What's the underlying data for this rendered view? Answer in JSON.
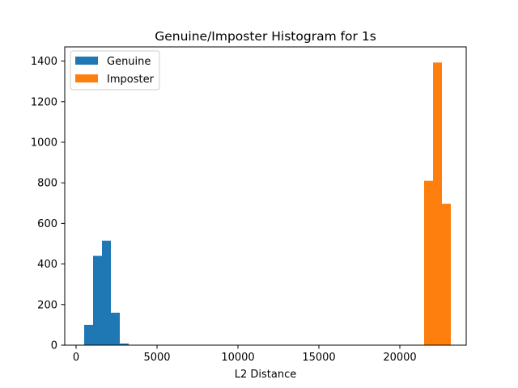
{
  "chart_data": {
    "type": "bar",
    "title": "Genuine/Imposter Histogram for 1s",
    "xlabel": "L2 Distance",
    "ylabel": "",
    "xlim": [
      -700,
      24100
    ],
    "ylim": [
      0,
      1470
    ],
    "xticks": [
      0,
      5000,
      10000,
      15000,
      20000
    ],
    "xtick_labels": [
      "0",
      "5000",
      "10000",
      "15000",
      "20000"
    ],
    "yticks": [
      0,
      200,
      400,
      600,
      800,
      1000,
      1200,
      1400
    ],
    "ytick_labels": [
      "0",
      "200",
      "400",
      "600",
      "800",
      "1000",
      "1200",
      "1400"
    ],
    "grid": false,
    "legend": {
      "position": "top-left"
    },
    "series": [
      {
        "name": "Genuine",
        "color": "#1f77b4",
        "bin_edges": [
          500,
          1050,
          1600,
          2150,
          2700,
          3250
        ],
        "counts": [
          100,
          440,
          515,
          160,
          8
        ]
      },
      {
        "name": "Imposter",
        "color": "#ff7f0e",
        "bin_edges": [
          21500,
          22050,
          22600,
          23150
        ],
        "counts": [
          810,
          1393,
          697
        ]
      }
    ]
  }
}
